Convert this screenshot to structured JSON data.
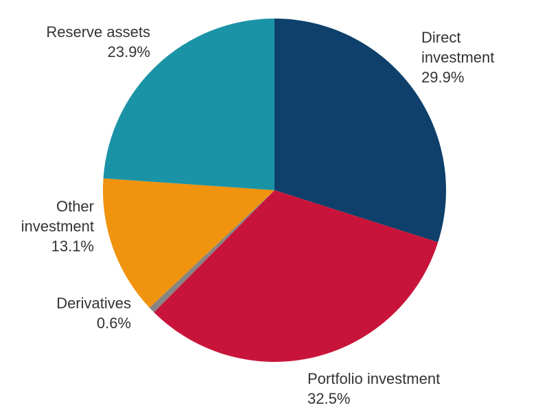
{
  "chart_data": {
    "type": "pie",
    "title": "",
    "start_angle_deg": 0,
    "direction": "clockwise",
    "slices": [
      {
        "label": "Direct investment",
        "value": 29.9,
        "display": "29.9%",
        "color": "#0e406b"
      },
      {
        "label": "Portfolio investment",
        "value": 32.5,
        "display": "32.5%",
        "color": "#c8143a"
      },
      {
        "label": "Derivatives",
        "value": 0.6,
        "display": "0.6%",
        "color": "#878484"
      },
      {
        "label": "Other investment",
        "value": 13.1,
        "display": "13.1%",
        "color": "#f0930f"
      },
      {
        "label": "Reserve assets",
        "value": 23.9,
        "display": "23.9%",
        "color": "#1b93a6"
      }
    ]
  },
  "labels": {
    "direct": {
      "line1": "Direct",
      "line2": "investment",
      "pct": "29.9%"
    },
    "portfolio": {
      "line1": "Portfolio investment",
      "pct": "32.5%"
    },
    "derivatives": {
      "line1": "Derivatives",
      "pct": "0.6%"
    },
    "other": {
      "line1": "Other",
      "line2": "investment",
      "pct": "13.1%"
    },
    "reserve": {
      "line1": "Reserve assets",
      "pct": "23.9%"
    }
  }
}
